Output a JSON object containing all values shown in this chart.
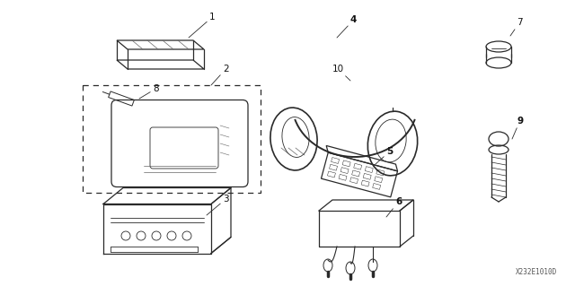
{
  "background_color": "#ffffff",
  "line_color": "#2a2a2a",
  "label_color": "#111111",
  "diagram_code": "X232E1010D",
  "figsize": [
    6.4,
    3.19
  ],
  "dpi": 100
}
